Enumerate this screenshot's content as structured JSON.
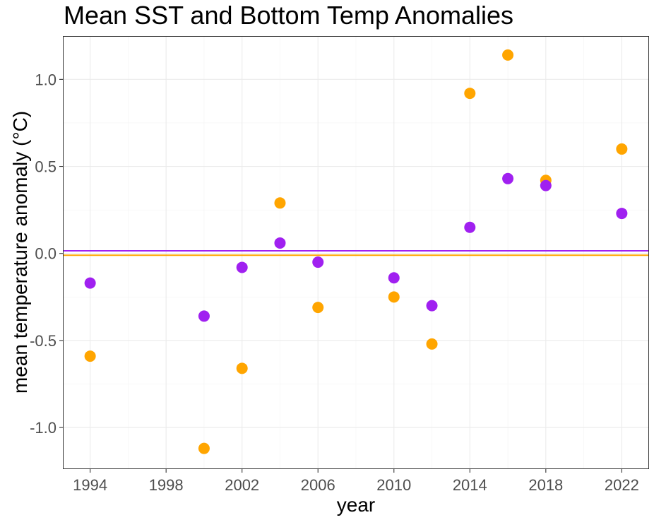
{
  "chart_data": {
    "type": "scatter",
    "title": "Mean SST and Bottom Temp Anomalies",
    "xlabel": "year",
    "ylabel": "mean temperature anomaly (°C)",
    "xlim": [
      1992.6,
      2023.4
    ],
    "ylim": [
      -1.235,
      1.245
    ],
    "x_ticks": [
      1994,
      1998,
      2002,
      2006,
      2010,
      2014,
      2018,
      2022
    ],
    "y_ticks": [
      -1.0,
      -0.5,
      0.0,
      0.5,
      1.0
    ],
    "y_tick_labels": [
      "-1.0",
      "-0.5",
      "0.0",
      "0.5",
      "1.0"
    ],
    "grid": true,
    "legend": "none",
    "series": [
      {
        "color": "#FFA500",
        "mean_line": -0.01,
        "points": [
          {
            "x": 1994,
            "y": -0.59
          },
          {
            "x": 2000,
            "y": -1.12
          },
          {
            "x": 2002,
            "y": -0.66
          },
          {
            "x": 2004,
            "y": 0.29
          },
          {
            "x": 2006,
            "y": -0.31
          },
          {
            "x": 2010,
            "y": -0.25
          },
          {
            "x": 2012,
            "y": -0.52
          },
          {
            "x": 2014,
            "y": 0.92
          },
          {
            "x": 2016,
            "y": 1.14
          },
          {
            "x": 2018,
            "y": 0.42
          },
          {
            "x": 2022,
            "y": 0.6
          }
        ]
      },
      {
        "color": "#A020F0",
        "mean_line": 0.015,
        "points": [
          {
            "x": 1994,
            "y": -0.17
          },
          {
            "x": 2000,
            "y": -0.36
          },
          {
            "x": 2002,
            "y": -0.08
          },
          {
            "x": 2004,
            "y": 0.06
          },
          {
            "x": 2006,
            "y": -0.05
          },
          {
            "x": 2010,
            "y": -0.14
          },
          {
            "x": 2012,
            "y": -0.3
          },
          {
            "x": 2014,
            "y": 0.15
          },
          {
            "x": 2016,
            "y": 0.43
          },
          {
            "x": 2018,
            "y": 0.39
          },
          {
            "x": 2022,
            "y": 0.23
          }
        ]
      }
    ]
  }
}
